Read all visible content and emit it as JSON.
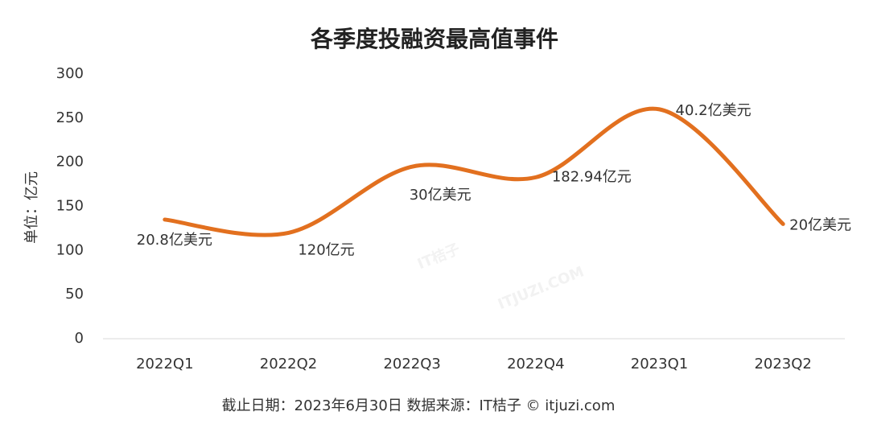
{
  "chart_data": {
    "type": "line",
    "title": "各季度投融资最高值事件",
    "y_label": "单位：亿元",
    "footer": "截止日期：2023年6月30日   数据来源：IT桔子 © itjuzi.com",
    "watermark": [
      "IT桔子",
      "ITJUZI.COM"
    ],
    "categories": [
      "2022Q1",
      "2022Q2",
      "2022Q3",
      "2022Q4",
      "2023Q1",
      "2023Q2"
    ],
    "values": [
      135,
      120,
      195,
      182.94,
      260,
      130
    ],
    "value_labels": [
      "20.8亿美元",
      "120亿元",
      "30亿美元",
      "182.94亿元",
      "40.2亿美元",
      "20亿美元"
    ],
    "color": "#e2701f",
    "ylim": [
      0,
      300
    ],
    "yticks": [
      0,
      50,
      100,
      150,
      200,
      250,
      300
    ],
    "grid": false,
    "smooth": true
  }
}
